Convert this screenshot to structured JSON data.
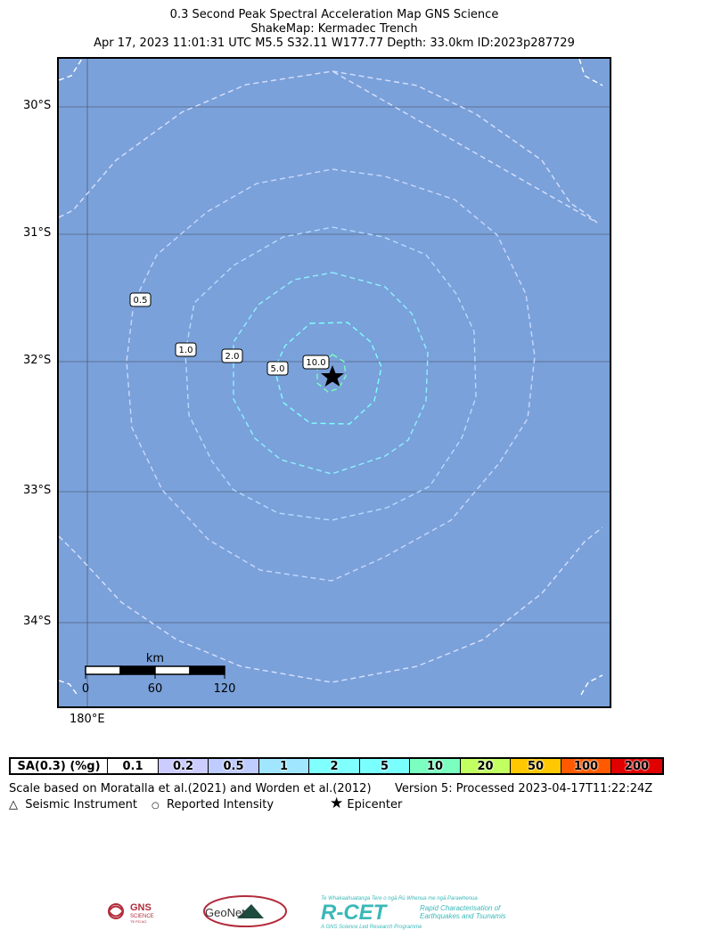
{
  "header": {
    "line1": "0.3 Second Peak Spectral Acceleration Map GNS Science",
    "line2": "ShakeMap: Kermadec Trench",
    "line3": "Apr 17, 2023 11:01:31 UTC M5.5 S32.11 W177.77 Depth: 33.0km ID:2023p287729"
  },
  "map": {
    "background_color": "#7aa1da",
    "lat_labels": [
      "30°S",
      "31°S",
      "32°S",
      "33°S",
      "34°S"
    ],
    "lon_labels": [
      "180°E"
    ],
    "contour_labels": [
      "0.5",
      "1.0",
      "2.0",
      "5.0",
      "10.0"
    ],
    "scalebar": {
      "unit": "km",
      "ticks": [
        "0",
        "60",
        "120"
      ]
    },
    "epicenter": {
      "lat": -32.11,
      "lon": -177.77,
      "symbol": "star-icon"
    }
  },
  "legend": {
    "title": "SA(0.3) (%g)",
    "bins": [
      {
        "label": "0.1",
        "color": "#ffffff"
      },
      {
        "label": "0.2",
        "color": "#ccccff"
      },
      {
        "label": "0.5",
        "color": "#bfccff"
      },
      {
        "label": "1",
        "color": "#a0e6ff"
      },
      {
        "label": "2",
        "color": "#80ffff"
      },
      {
        "label": "5",
        "color": "#7affff"
      },
      {
        "label": "10",
        "color": "#7affc0"
      },
      {
        "label": "20",
        "color": "#c2ff60"
      },
      {
        "label": "50",
        "color": "#ffc800"
      },
      {
        "label": "100",
        "color": "#ff5a00"
      },
      {
        "label": "200",
        "color": "#e00000"
      }
    ],
    "scale_note": "Scale based on Moratalla et al.(2021) and Worden et al.(2012)",
    "version": "Version 5: Processed 2023-04-17T11:22:24Z"
  },
  "key": {
    "instrument": "Seismic Instrument",
    "intensity": "Reported Intensity",
    "epicenter": "Epicenter"
  },
  "logos": {
    "gns": "GNS",
    "gns_sub": "SCIENCE",
    "gns_sub2": "TE PŪ AO",
    "geonet": "GeoNet",
    "rcet": "R-CET",
    "rcet_maori": "Te Whakaahuatanga Tere o ngā Rū Whenua me ngā Parawhenua",
    "rcet_desc1": "Rapid Characterisation of",
    "rcet_desc2": "Earthquakes and Tsunamis",
    "rcet_footer": "A GNS Science Led Research Programme"
  }
}
